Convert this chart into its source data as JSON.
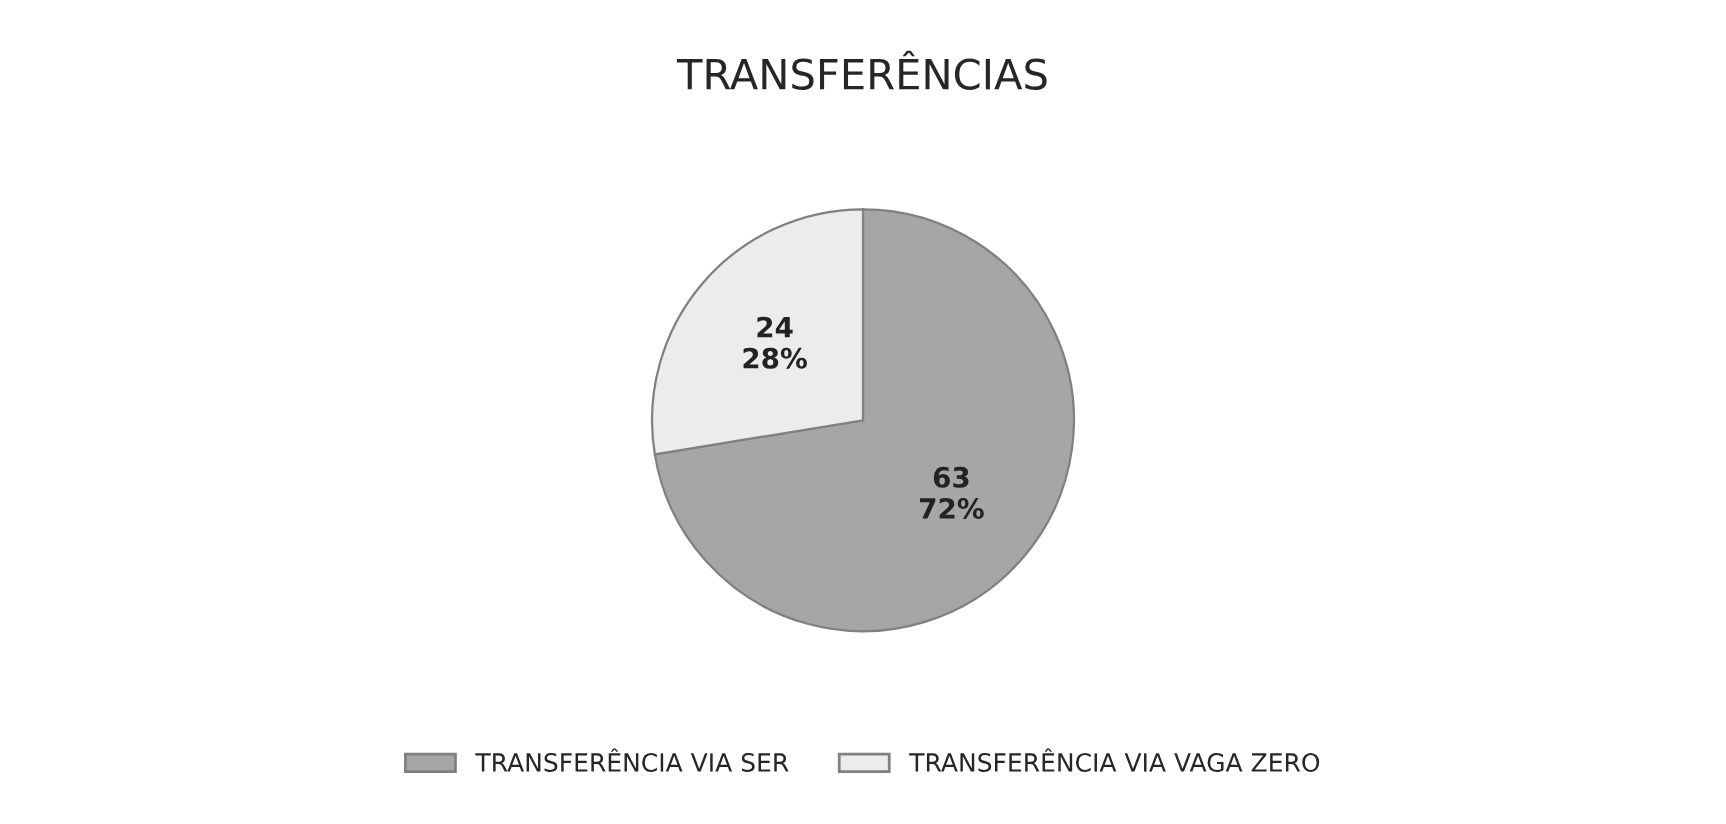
{
  "chart_data": {
    "type": "pie",
    "title": "TRANSFERÊNCIAS",
    "categories": [
      "TRANSFERÊNCIA VIA SER",
      "TRANSFERÊNCIA VIA VAGA ZERO"
    ],
    "values": [
      63,
      24
    ],
    "colors": [
      "#a6a6a6",
      "#ececec"
    ],
    "value_labels": [
      "63\n72%",
      "24\n28%"
    ],
    "legend": "bottom"
  }
}
